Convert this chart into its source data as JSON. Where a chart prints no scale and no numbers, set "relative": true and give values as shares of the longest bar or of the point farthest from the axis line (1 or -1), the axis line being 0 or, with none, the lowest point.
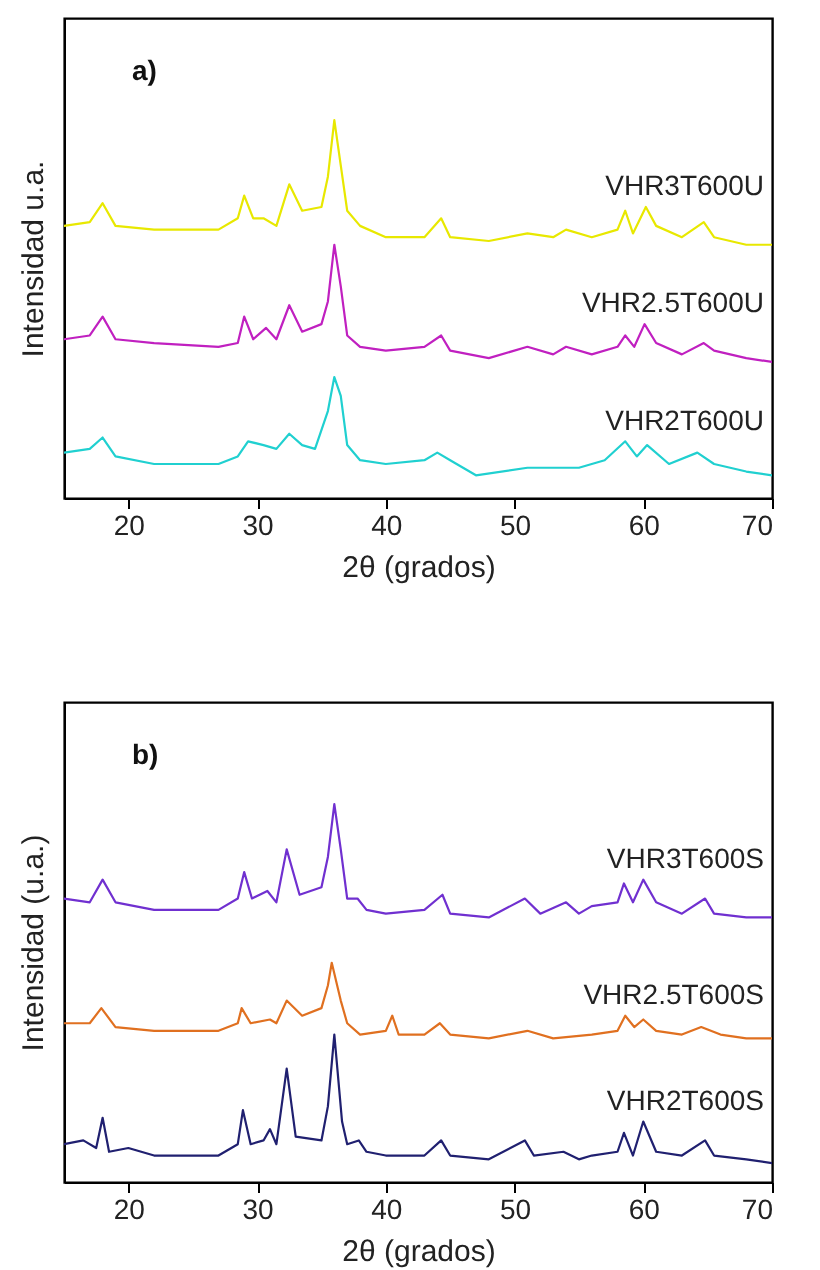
{
  "chart_data": [
    {
      "type": "line",
      "relative": true,
      "xlabel": "2θ (grados)",
      "ylabel": "Intensidad u.a.",
      "annotations": [
        "a)"
      ],
      "xlim": [
        15,
        70
      ],
      "xticks": [
        20,
        30,
        40,
        50,
        60,
        70
      ],
      "grid": false,
      "legend": false,
      "marker": "none",
      "line_style": "solid",
      "series": [
        {
          "name": "VHR3T600U",
          "color": "#e8e800",
          "x": [
            15,
            17,
            18,
            19,
            22,
            27,
            28.5,
            29,
            29.7,
            30.5,
            31.5,
            32.5,
            33.5,
            35,
            35.5,
            36,
            36.5,
            37,
            38,
            40,
            43,
            44.3,
            45,
            48,
            51,
            53,
            54,
            56,
            58,
            58.6,
            59.2,
            60.2,
            61,
            63,
            64.7,
            65.5,
            68,
            70
          ],
          "values": [
            0.72,
            0.73,
            0.78,
            0.72,
            0.71,
            0.71,
            0.74,
            0.8,
            0.74,
            0.74,
            0.72,
            0.83,
            0.76,
            0.77,
            0.85,
            1,
            0.88,
            0.76,
            0.72,
            0.69,
            0.69,
            0.74,
            0.69,
            0.68,
            0.7,
            0.69,
            0.71,
            0.69,
            0.71,
            0.76,
            0.7,
            0.77,
            0.72,
            0.69,
            0.73,
            0.69,
            0.67,
            0.67
          ]
        },
        {
          "name": "VHR2.5T600U",
          "color": "#c020c0",
          "x": [
            15,
            17,
            18,
            19,
            22,
            27,
            28.5,
            29,
            29.7,
            30.7,
            31.5,
            32.5,
            33.5,
            35,
            35.5,
            36,
            36.5,
            37,
            38,
            40,
            43,
            44.3,
            45,
            48,
            51,
            53,
            54,
            56,
            58,
            58.6,
            59.3,
            60.1,
            61,
            63,
            64.7,
            65.5,
            68,
            70
          ],
          "values": [
            0.42,
            0.43,
            0.48,
            0.42,
            0.41,
            0.4,
            0.41,
            0.48,
            0.42,
            0.45,
            0.42,
            0.51,
            0.44,
            0.46,
            0.52,
            0.67,
            0.56,
            0.43,
            0.4,
            0.39,
            0.4,
            0.43,
            0.39,
            0.37,
            0.4,
            0.38,
            0.4,
            0.38,
            0.4,
            0.43,
            0.4,
            0.46,
            0.41,
            0.38,
            0.41,
            0.39,
            0.37,
            0.36
          ]
        },
        {
          "name": "VHR2T600U",
          "color": "#20d0d0",
          "x": [
            15,
            17,
            18,
            19,
            22,
            27,
            28.5,
            29.3,
            30.5,
            31.5,
            32.5,
            33.5,
            34.5,
            35.5,
            36,
            36.5,
            37,
            38,
            40,
            43,
            44,
            45,
            47,
            51,
            55,
            57,
            58.6,
            59.5,
            60.3,
            62,
            64.2,
            65.5,
            68,
            70
          ],
          "values": [
            0.12,
            0.13,
            0.16,
            0.11,
            0.09,
            0.09,
            0.11,
            0.15,
            0.14,
            0.13,
            0.17,
            0.14,
            0.13,
            0.23,
            0.32,
            0.27,
            0.14,
            0.1,
            0.09,
            0.1,
            0.12,
            0.1,
            0.06,
            0.08,
            0.08,
            0.1,
            0.15,
            0.11,
            0.14,
            0.09,
            0.12,
            0.09,
            0.07,
            0.06
          ]
        }
      ]
    },
    {
      "type": "line",
      "relative": true,
      "xlabel": "2θ (grados)",
      "ylabel": "Intensidad (u.a.)",
      "annotations": [
        "b)"
      ],
      "xlim": [
        15,
        70
      ],
      "xticks": [
        20,
        30,
        40,
        50,
        60,
        70
      ],
      "grid": false,
      "legend": false,
      "marker": "none",
      "line_style": "solid",
      "series": [
        {
          "name": "VHR3T600S",
          "color": "#7030d0",
          "x": [
            15,
            17,
            18,
            19,
            22,
            27,
            28.5,
            29,
            29.6,
            30.8,
            31.5,
            32.3,
            33.3,
            35,
            35.5,
            36,
            36.5,
            37,
            37.8,
            38.5,
            40,
            43,
            44.4,
            45,
            48,
            50.8,
            52,
            54,
            55,
            56,
            58,
            58.5,
            59.2,
            60,
            61,
            63,
            64.8,
            65.5,
            68,
            70
          ],
          "values": [
            0.75,
            0.74,
            0.8,
            0.74,
            0.72,
            0.72,
            0.75,
            0.82,
            0.75,
            0.77,
            0.74,
            0.88,
            0.76,
            0.78,
            0.86,
            1,
            0.88,
            0.75,
            0.75,
            0.72,
            0.71,
            0.72,
            0.76,
            0.71,
            0.7,
            0.75,
            0.71,
            0.74,
            0.71,
            0.73,
            0.74,
            0.79,
            0.74,
            0.8,
            0.74,
            0.71,
            0.75,
            0.71,
            0.7,
            0.7
          ]
        },
        {
          "name": "VHR2.5T600S",
          "color": "#e07020",
          "x": [
            15,
            17,
            17.9,
            19,
            22,
            27,
            28.5,
            28.8,
            29.5,
            31,
            31.5,
            32.3,
            33.5,
            35,
            35.5,
            35.8,
            36.5,
            37,
            38,
            40,
            40.5,
            41,
            43,
            44.2,
            45,
            48,
            51,
            53,
            56,
            58,
            58.6,
            59.3,
            60,
            61,
            63,
            64.5,
            66,
            68,
            70
          ],
          "values": [
            0.42,
            0.42,
            0.46,
            0.41,
            0.4,
            0.4,
            0.42,
            0.46,
            0.42,
            0.43,
            0.42,
            0.48,
            0.44,
            0.46,
            0.52,
            0.58,
            0.48,
            0.42,
            0.39,
            0.4,
            0.44,
            0.39,
            0.39,
            0.42,
            0.39,
            0.38,
            0.4,
            0.38,
            0.39,
            0.4,
            0.44,
            0.41,
            0.43,
            0.4,
            0.39,
            0.41,
            0.39,
            0.38,
            0.38
          ]
        },
        {
          "name": "VHR2T600S",
          "color": "#202070",
          "x": [
            15,
            16.5,
            17.5,
            18,
            18.5,
            20,
            22,
            27,
            28.5,
            28.9,
            29.5,
            30.5,
            31,
            31.5,
            32.3,
            33,
            35,
            35.5,
            36,
            36.6,
            37,
            37.9,
            38.5,
            40,
            43,
            44.3,
            45,
            48,
            50.8,
            51.5,
            53.8,
            55,
            56,
            58,
            58.5,
            59.2,
            60,
            61,
            63,
            64.8,
            65.5,
            68,
            70
          ],
          "values": [
            0.1,
            0.11,
            0.09,
            0.17,
            0.08,
            0.09,
            0.07,
            0.07,
            0.1,
            0.19,
            0.1,
            0.11,
            0.14,
            0.1,
            0.3,
            0.12,
            0.11,
            0.2,
            0.39,
            0.16,
            0.1,
            0.11,
            0.08,
            0.07,
            0.07,
            0.11,
            0.07,
            0.06,
            0.11,
            0.07,
            0.08,
            0.06,
            0.07,
            0.08,
            0.13,
            0.07,
            0.16,
            0.08,
            0.07,
            0.11,
            0.07,
            0.06,
            0.05
          ]
        }
      ]
    }
  ]
}
